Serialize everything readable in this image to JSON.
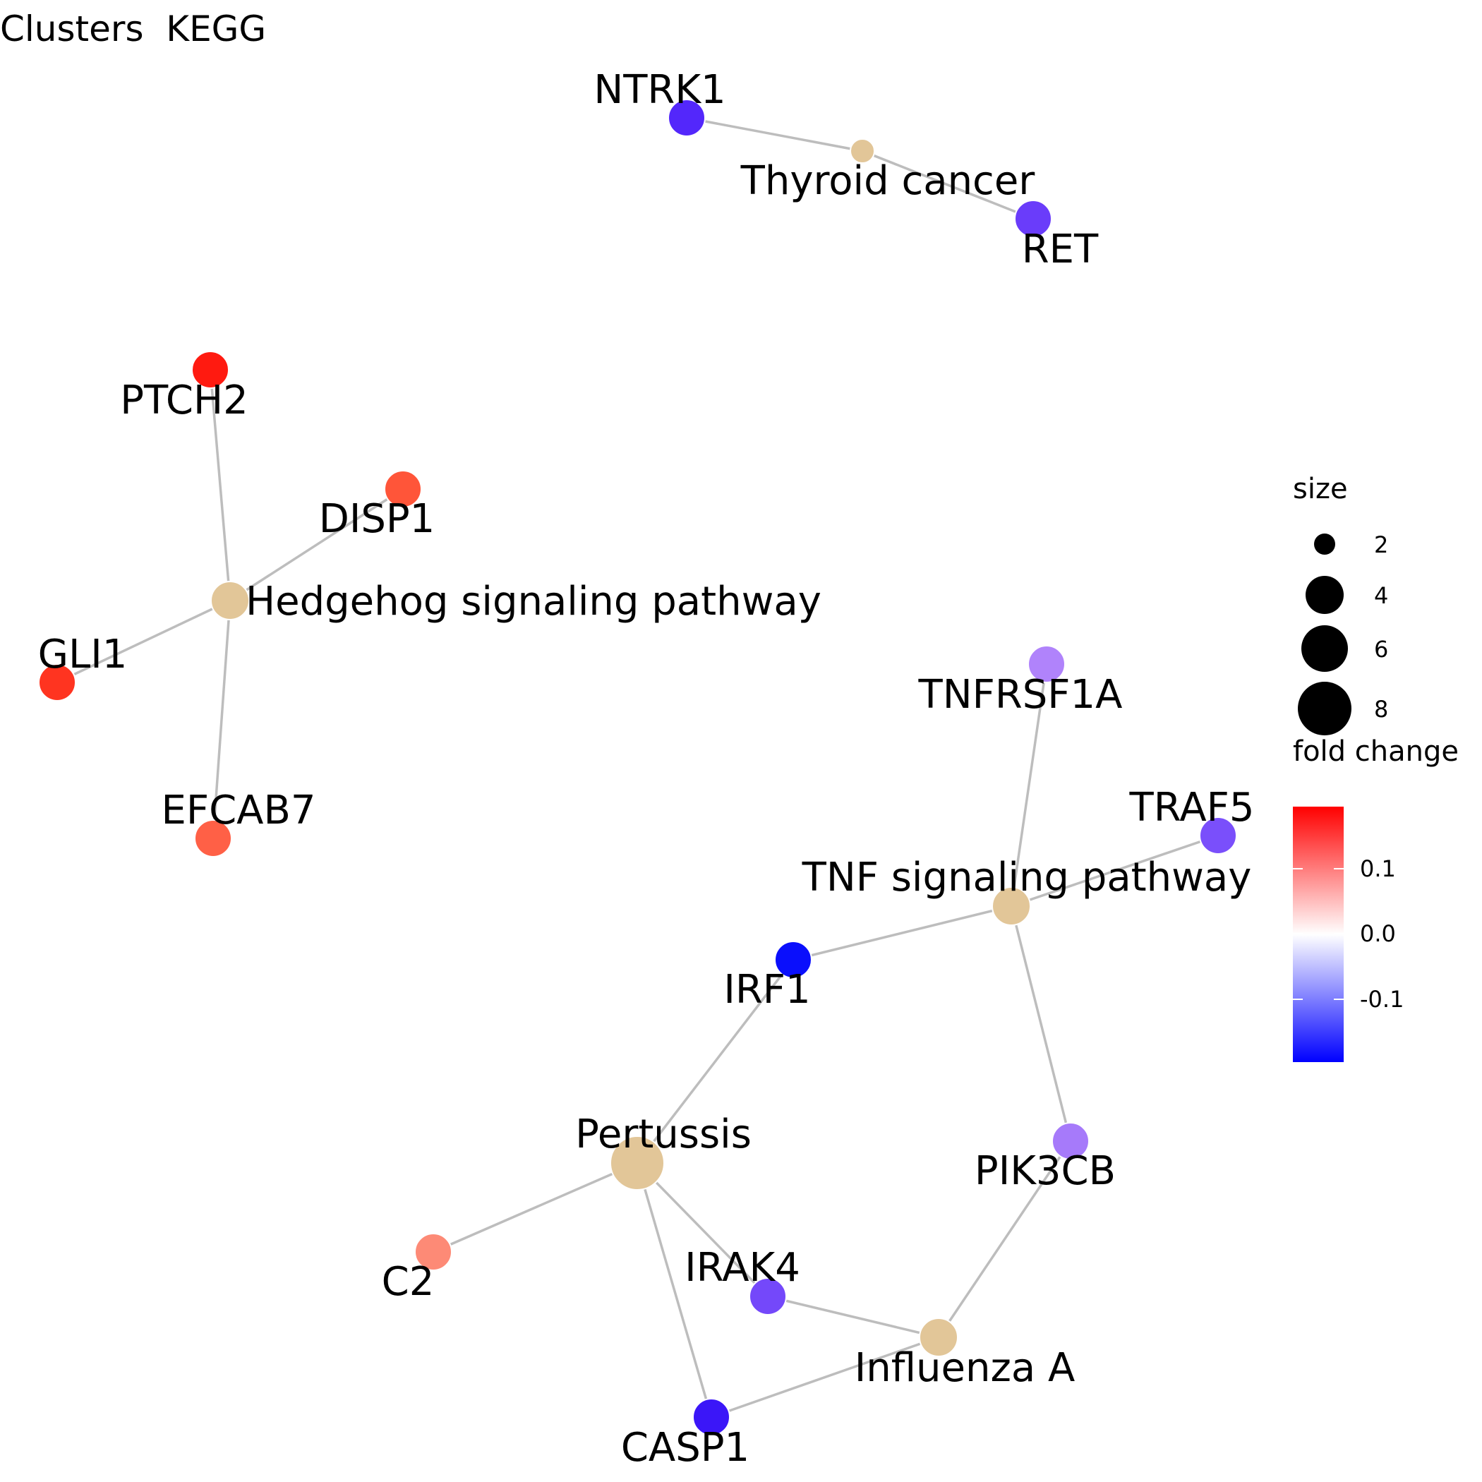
{
  "title": "Clusters  KEGG",
  "nodes": [
    {
      "id": "NTRK1",
      "label": "NTRK1",
      "kind": "gene",
      "color": "#5327fb"
    },
    {
      "id": "Thyroid cancer",
      "label": "Thyroid cancer",
      "kind": "pathway",
      "size": 2,
      "color": "#e2c698"
    },
    {
      "id": "RET",
      "label": "RET",
      "kind": "gene",
      "color": "#6a3cfa"
    },
    {
      "id": "PTCH2",
      "label": "PTCH2",
      "kind": "gene",
      "color": "#ff1a10"
    },
    {
      "id": "DISP1",
      "label": "DISP1",
      "kind": "gene",
      "color": "#ff5539"
    },
    {
      "id": "Hedgehog signaling pathway",
      "label": "Hedgehog signaling pathway",
      "kind": "pathway",
      "size": 4,
      "color": "#e2c698"
    },
    {
      "id": "GLI1",
      "label": "GLI1",
      "kind": "gene",
      "color": "#ff3420"
    },
    {
      "id": "EFCAB7",
      "label": "EFCAB7",
      "kind": "gene",
      "color": "#ff6046"
    },
    {
      "id": "TNFRSF1A",
      "label": "TNFRSF1A",
      "kind": "gene",
      "color": "#b083fb"
    },
    {
      "id": "TRAF5",
      "label": "TRAF5",
      "kind": "gene",
      "color": "#7a4ffb"
    },
    {
      "id": "TNF signaling pathway",
      "label": "TNF signaling pathway",
      "kind": "pathway",
      "size": 4,
      "color": "#e2c698"
    },
    {
      "id": "IRF1",
      "label": "IRF1",
      "kind": "gene",
      "color": "#0a0ffc"
    },
    {
      "id": "Pertussis",
      "label": "Pertussis",
      "kind": "pathway",
      "size": 8,
      "color": "#e2c698"
    },
    {
      "id": "PIK3CB",
      "label": "PIK3CB",
      "kind": "gene",
      "color": "#a67afa"
    },
    {
      "id": "C2",
      "label": "C2",
      "kind": "gene",
      "color": "#fd8a76"
    },
    {
      "id": "IRAK4",
      "label": "IRAK4",
      "kind": "gene",
      "color": "#7448fa"
    },
    {
      "id": "Influenza A",
      "label": "Influenza A",
      "kind": "pathway",
      "size": 4,
      "color": "#e2c698"
    },
    {
      "id": "CASP1",
      "label": "CASP1",
      "kind": "gene",
      "color": "#3b16f8"
    }
  ],
  "edges": [
    [
      "NTRK1",
      "Thyroid cancer"
    ],
    [
      "Thyroid cancer",
      "RET"
    ],
    [
      "PTCH2",
      "Hedgehog signaling pathway"
    ],
    [
      "DISP1",
      "Hedgehog signaling pathway"
    ],
    [
      "GLI1",
      "Hedgehog signaling pathway"
    ],
    [
      "EFCAB7",
      "Hedgehog signaling pathway"
    ],
    [
      "TNFRSF1A",
      "TNF signaling pathway"
    ],
    [
      "TRAF5",
      "TNF signaling pathway"
    ],
    [
      "IRF1",
      "TNF signaling pathway"
    ],
    [
      "PIK3CB",
      "TNF signaling pathway"
    ],
    [
      "IRF1",
      "Pertussis"
    ],
    [
      "C2",
      "Pertussis"
    ],
    [
      "IRAK4",
      "Pertussis"
    ],
    [
      "CASP1",
      "Pertussis"
    ],
    [
      "IRAK4",
      "Influenza A"
    ],
    [
      "CASP1",
      "Influenza A"
    ],
    [
      "PIK3CB",
      "Influenza A"
    ]
  ],
  "legend": {
    "size_title": "size",
    "size_values": [
      "2",
      "4",
      "6",
      "8"
    ],
    "color_title": "fold change",
    "color_ticks": [
      "0.1",
      "0.0",
      "-0.1"
    ],
    "color_low": "#0000ff",
    "color_mid": "#ffffff",
    "color_high": "#ff0000"
  }
}
